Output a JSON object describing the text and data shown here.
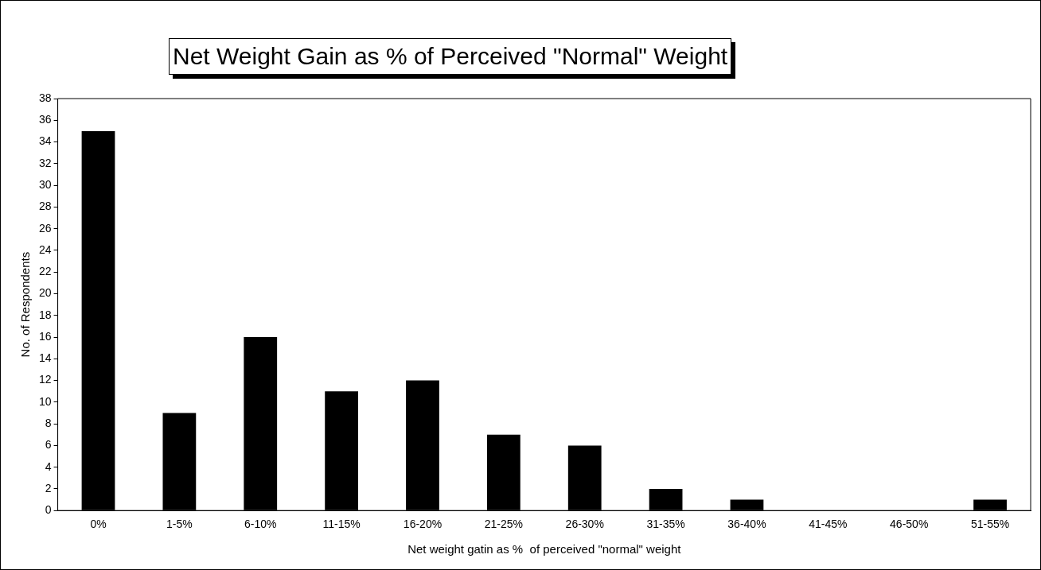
{
  "chart_data": {
    "type": "bar",
    "title": "Net Weight Gain as % of Perceived \"Normal\" Weight",
    "xlabel": "Net weight gatin as %  of perceived \"normal\" weight",
    "ylabel": "No. of Respondents",
    "categories": [
      "0%",
      "1-5%",
      "6-10%",
      "11-15%",
      "16-20%",
      "21-25%",
      "26-30%",
      "31-35%",
      "36-40%",
      "41-45%",
      "46-50%",
      "51-55%"
    ],
    "values": [
      35,
      9,
      16,
      11,
      12,
      7,
      6,
      2,
      1,
      0,
      0,
      1
    ],
    "color": "#000000",
    "ylim": [
      0,
      38
    ],
    "yticks": [
      0,
      2,
      4,
      6,
      8,
      10,
      12,
      14,
      16,
      18,
      20,
      22,
      24,
      26,
      28,
      30,
      32,
      34,
      36,
      38
    ],
    "legend": false
  }
}
